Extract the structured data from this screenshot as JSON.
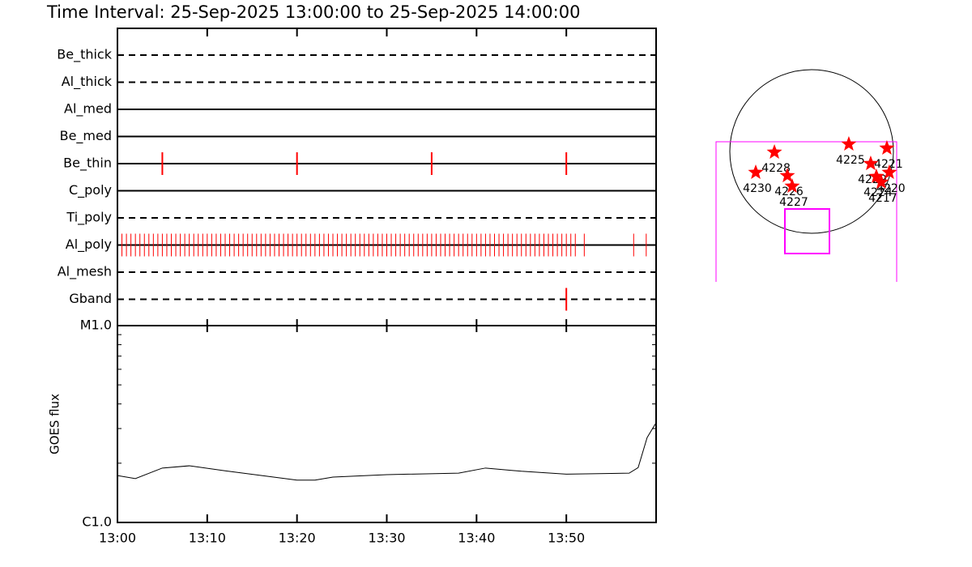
{
  "chart_data": [
    {
      "type": "timeline",
      "title": "Time Interval: 25-Sep-2025 13:00:00 to 25-Sep-2025 14:00:00",
      "xlim": [
        0,
        60
      ],
      "color": "#ff0000",
      "series": [
        {
          "name": "Be_thick",
          "line": "dashed",
          "values": []
        },
        {
          "name": "Al_thick",
          "line": "dashed",
          "values": []
        },
        {
          "name": "Al_med",
          "line": "solid",
          "values": []
        },
        {
          "name": "Be_med",
          "line": "solid",
          "values": []
        },
        {
          "name": "Be_thin",
          "line": "solid",
          "values": [
            5,
            20,
            35,
            50
          ]
        },
        {
          "name": "C_poly",
          "line": "solid",
          "values": []
        },
        {
          "name": "Ti_poly",
          "line": "dashed",
          "values": []
        },
        {
          "name": "Al_poly",
          "line": "solid",
          "values": [
            0.5,
            1,
            1.5,
            2,
            2.5,
            3,
            3.5,
            4,
            4.5,
            5,
            5.5,
            6,
            6.5,
            7,
            7.5,
            8,
            8.5,
            9,
            9.5,
            10,
            10.5,
            11,
            11.5,
            12,
            12.5,
            13,
            13.5,
            14,
            14.5,
            15,
            15.5,
            16,
            16.5,
            17,
            17.5,
            18,
            18.5,
            19,
            19.5,
            20,
            20.5,
            21,
            21.5,
            22,
            22.5,
            23,
            23.5,
            24,
            24.5,
            25,
            25.5,
            26,
            26.5,
            27,
            27.5,
            28,
            28.5,
            29,
            29.5,
            30,
            30.5,
            31,
            31.5,
            32,
            32.5,
            33,
            33.5,
            34,
            34.5,
            35,
            35.5,
            36,
            36.5,
            37,
            37.5,
            38,
            38.5,
            39,
            39.5,
            40,
            40.5,
            41,
            41.5,
            42,
            42.5,
            43,
            43.5,
            44,
            44.5,
            45,
            45.5,
            46,
            46.5,
            47,
            47.5,
            48,
            48.5,
            49,
            49.5,
            50,
            50.5,
            51,
            52,
            57.5,
            58.9
          ]
        },
        {
          "name": "Al_mesh",
          "line": "dashed",
          "values": []
        },
        {
          "name": "Gband",
          "line": "dashed",
          "values": [
            50
          ]
        }
      ]
    },
    {
      "type": "line",
      "ylabel": "GOES flux",
      "log_scale": true,
      "color": "#000000",
      "xlim": [
        0,
        60
      ],
      "xticks": [
        {
          "value": 0,
          "label": "13:00"
        },
        {
          "value": 10,
          "label": "13:10"
        },
        {
          "value": 20,
          "label": "13:20"
        },
        {
          "value": 30,
          "label": "13:30"
        },
        {
          "value": 40,
          "label": "13:40"
        },
        {
          "value": 50,
          "label": "13:50"
        }
      ],
      "ylim": [
        1e-06,
        1e-05
      ],
      "yticks": [
        {
          "value": 1e-05,
          "label": "M1.0"
        },
        {
          "value": 1e-06,
          "label": "C1.0"
        }
      ],
      "minor_yticks": [
        2e-06,
        3e-06,
        4e-06,
        5e-06,
        6e-06,
        7e-06,
        8e-06,
        9e-06
      ],
      "x": [
        0,
        2,
        5,
        8,
        12,
        20,
        22,
        24,
        30,
        38,
        41,
        45,
        50,
        57,
        58,
        59,
        60
      ],
      "values": [
        1.73e-06,
        1.67e-06,
        1.89e-06,
        1.94e-06,
        1.83e-06,
        1.64e-06,
        1.64e-06,
        1.7e-06,
        1.75e-06,
        1.78e-06,
        1.89e-06,
        1.82e-06,
        1.76e-06,
        1.78e-06,
        1.9e-06,
        2.7e-06,
        3.21e-06
      ]
    },
    {
      "type": "map",
      "color": "#ff0000",
      "labels": [
        "4228",
        "4230",
        "4226",
        "4227",
        "4225",
        "4221",
        "4229",
        "4220",
        "4224",
        "4217"
      ],
      "x": [
        -432,
        -649,
        -282,
        -226,
        432,
        874,
        686,
        902,
        752,
        808
      ],
      "y": [
        -9,
        -244,
        -282,
        -404,
        85,
        38,
        -141,
        -244,
        -291,
        -357
      ]
    }
  ]
}
